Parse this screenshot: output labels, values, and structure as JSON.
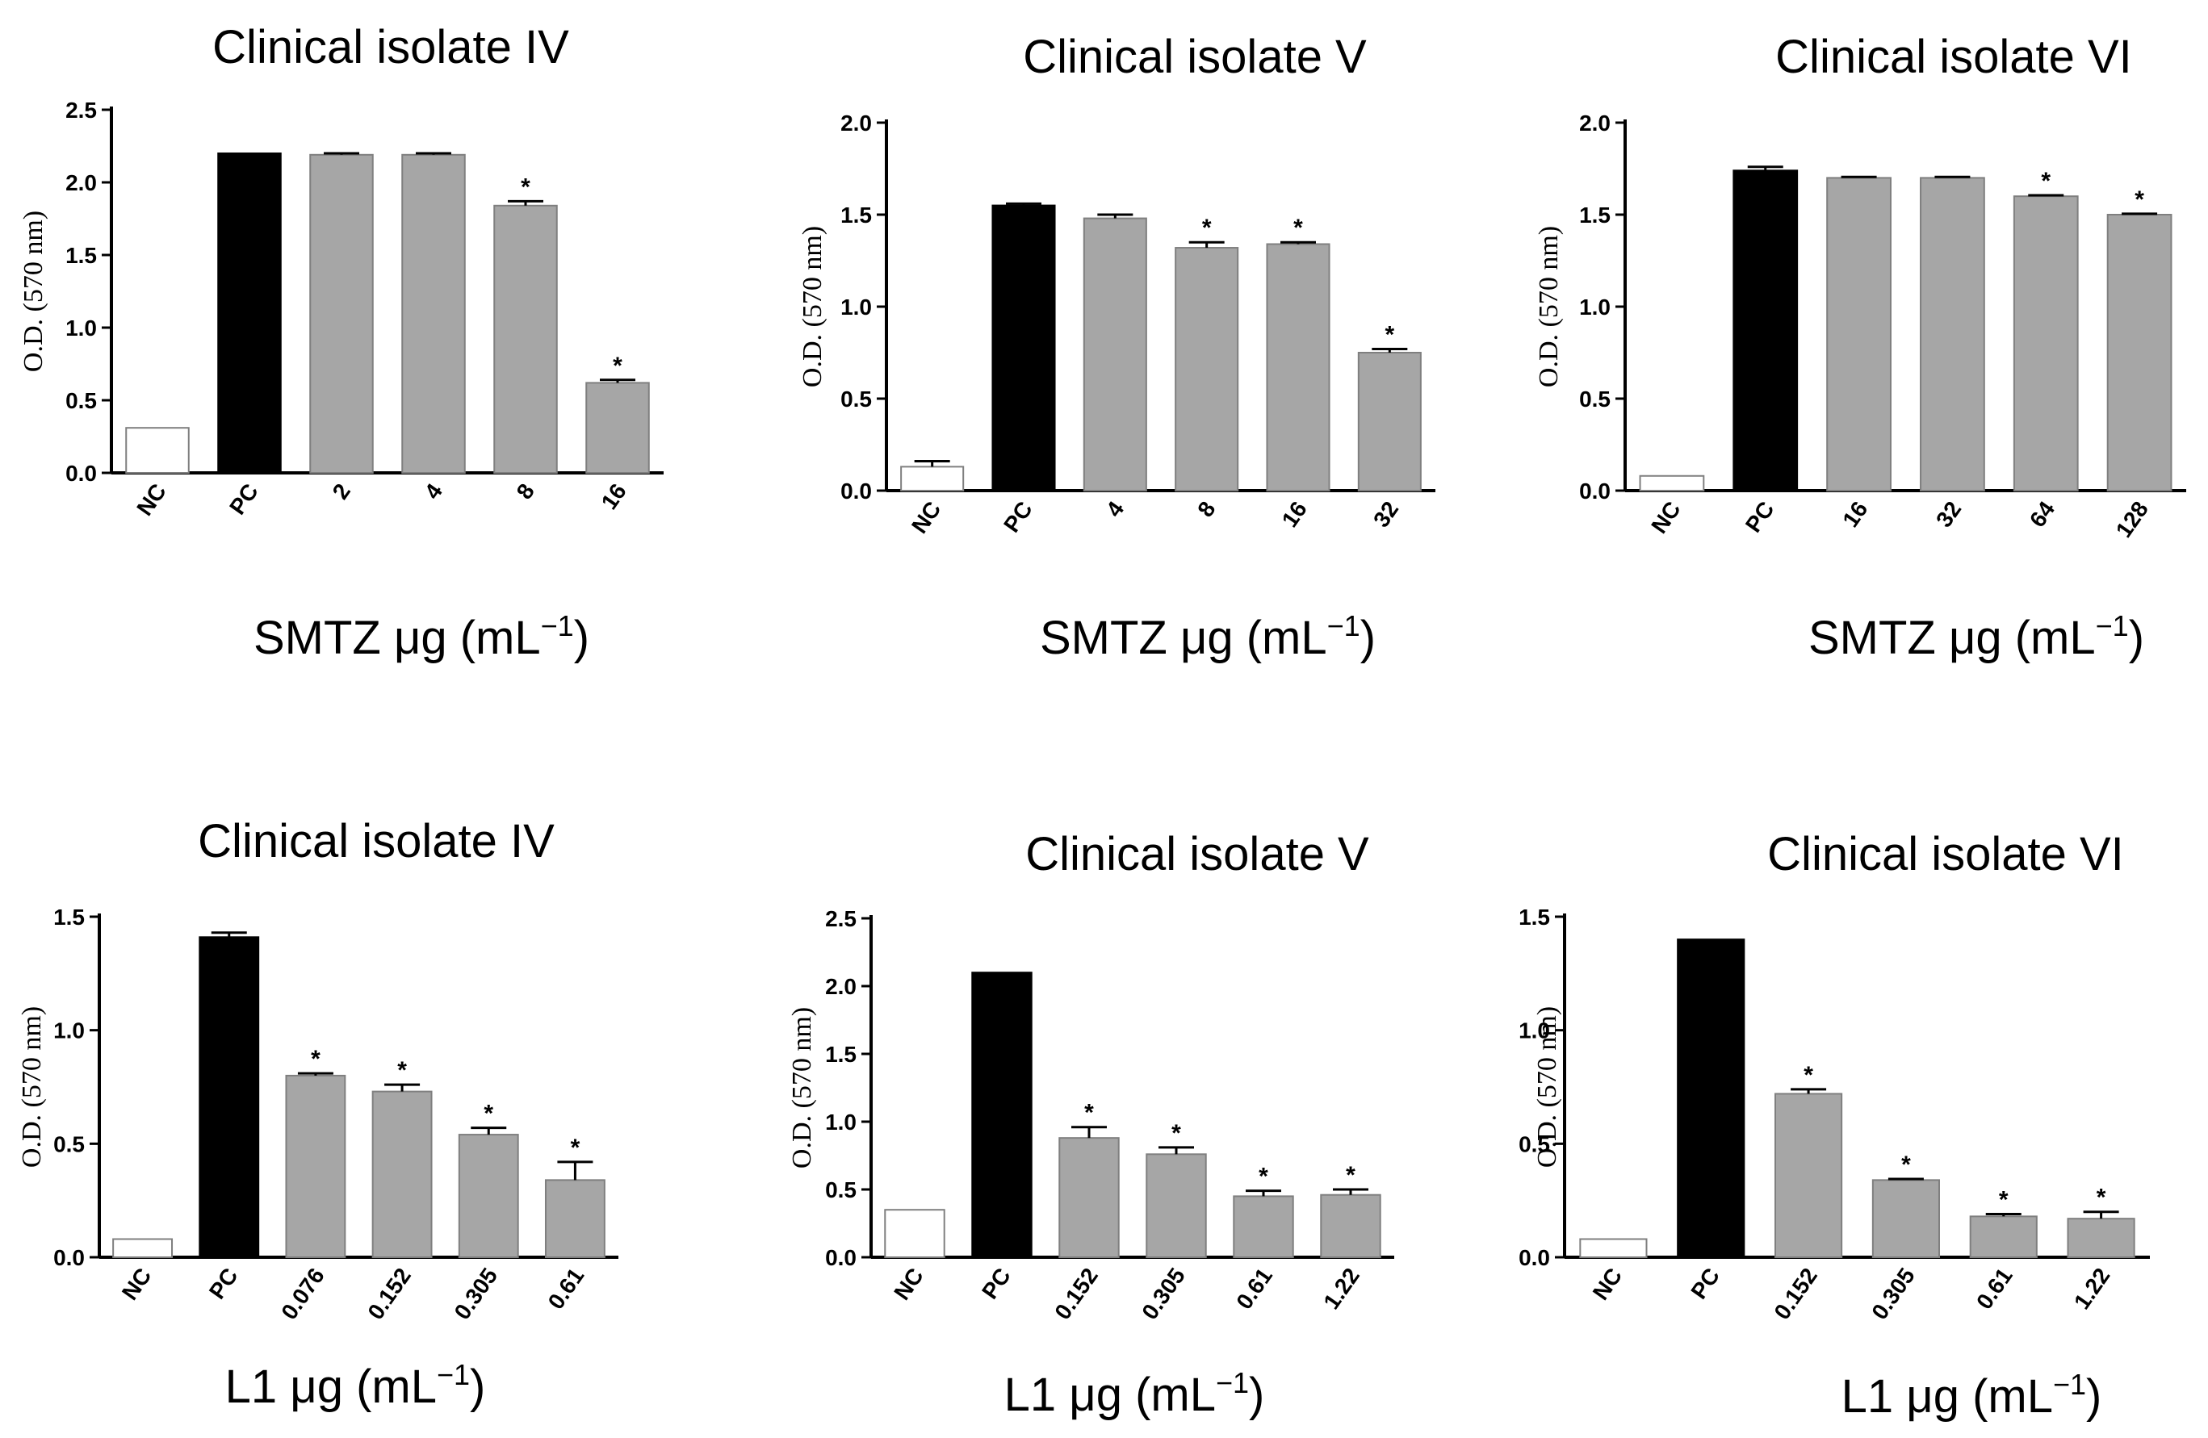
{
  "colors": {
    "nc": "#ffffff",
    "pc": "#000000",
    "treated": "#a6a6a6",
    "edge": "#7f7f7f"
  },
  "ylabel": "O.D. (570 nm)",
  "chart_data": [
    {
      "type": "bar",
      "title": "Clinical isolate IV",
      "xlabel": {
        "main": "SMTZ μg (mL",
        "sup": "−1",
        "end": ")"
      },
      "ylabel": "O.D. (570 nm)",
      "ylim": [
        0,
        2.5
      ],
      "yticks": [
        "0.0",
        "0.5",
        "1.0",
        "1.5",
        "2.0",
        "2.5"
      ],
      "categories": [
        "NC",
        "PC",
        "2",
        "4",
        "8",
        "16"
      ],
      "values": [
        0.31,
        2.2,
        2.19,
        2.19,
        1.84,
        0.62
      ],
      "errors": [
        0,
        0,
        0.01,
        0.01,
        0.03,
        0.02
      ],
      "significant": [
        false,
        false,
        false,
        false,
        true,
        true
      ]
    },
    {
      "type": "bar",
      "title": "Clinical isolate V",
      "xlabel": {
        "main": "SMTZ μg (mL",
        "sup": "−1",
        "end": ")"
      },
      "ylabel": "O.D. (570 nm)",
      "ylim": [
        0,
        2.0
      ],
      "yticks": [
        "0.0",
        "0.5",
        "1.0",
        "1.5",
        "2.0"
      ],
      "categories": [
        "NC",
        "PC",
        "4",
        "8",
        "16",
        "32"
      ],
      "values": [
        0.13,
        1.55,
        1.48,
        1.32,
        1.34,
        0.75
      ],
      "errors": [
        0.03,
        0.01,
        0.02,
        0.03,
        0.01,
        0.02
      ],
      "significant": [
        false,
        false,
        false,
        true,
        true,
        true
      ]
    },
    {
      "type": "bar",
      "title": "Clinical isolate VI",
      "xlabel": {
        "main": "SMTZ μg (mL",
        "sup": "−1",
        "end": ")"
      },
      "ylabel": "O.D. (570 nm)",
      "ylim": [
        0,
        2.0
      ],
      "yticks": [
        "0.0",
        "0.5",
        "1.0",
        "1.5",
        "2.0"
      ],
      "categories": [
        "NC",
        "PC",
        "16",
        "32",
        "64",
        "128"
      ],
      "values": [
        0.08,
        1.74,
        1.7,
        1.7,
        1.6,
        1.5
      ],
      "errors": [
        0,
        0.02,
        0.005,
        0.005,
        0.005,
        0.005
      ],
      "significant": [
        false,
        false,
        false,
        false,
        true,
        true
      ]
    },
    {
      "type": "bar",
      "title": "Clinical isolate IV",
      "xlabel": {
        "main": "L1 μg (mL",
        "sup": "−1",
        "end": ")"
      },
      "ylabel": "O.D. (570 nm)",
      "ylim": [
        0,
        1.5
      ],
      "yticks": [
        "0.0",
        "0.5",
        "1.0",
        "1.5"
      ],
      "categories": [
        "NC",
        "PC",
        "0.076",
        "0.152",
        "0.305",
        "0.61"
      ],
      "values": [
        0.08,
        1.41,
        0.8,
        0.73,
        0.54,
        0.34
      ],
      "errors": [
        0,
        0.02,
        0.01,
        0.03,
        0.03,
        0.08
      ],
      "significant": [
        false,
        false,
        true,
        true,
        true,
        true
      ]
    },
    {
      "type": "bar",
      "title": "Clinical isolate V",
      "xlabel": {
        "main": "L1 μg (mL",
        "sup": "−1",
        "end": ")"
      },
      "ylabel": "O.D. (570 nm)",
      "ylim": [
        0,
        2.5
      ],
      "yticks": [
        "0.0",
        "0.5",
        "1.0",
        "1.5",
        "2.0",
        "2.5"
      ],
      "categories": [
        "NC",
        "PC",
        "0.152",
        "0.305",
        "0.61",
        "1.22"
      ],
      "values": [
        0.35,
        2.1,
        0.88,
        0.76,
        0.45,
        0.46
      ],
      "errors": [
        0,
        0,
        0.08,
        0.05,
        0.04,
        0.04
      ],
      "significant": [
        false,
        false,
        true,
        true,
        true,
        true
      ]
    },
    {
      "type": "bar",
      "title": "Clinical isolate VI",
      "xlabel": {
        "main": "L1 μg (mL",
        "sup": "−1",
        "end": ")"
      },
      "ylabel": "O.D. (570 nm)",
      "ylim": [
        0,
        1.5
      ],
      "yticks": [
        "0.0",
        "0.5",
        "1.0",
        "1.5"
      ],
      "categories": [
        "NC",
        "PC",
        "0.152",
        "0.305",
        "0.61",
        "1.22"
      ],
      "values": [
        0.08,
        1.4,
        0.72,
        0.34,
        0.18,
        0.17
      ],
      "errors": [
        0,
        0,
        0.02,
        0.005,
        0.01,
        0.03
      ],
      "significant": [
        false,
        false,
        true,
        true,
        true,
        true
      ]
    }
  ]
}
